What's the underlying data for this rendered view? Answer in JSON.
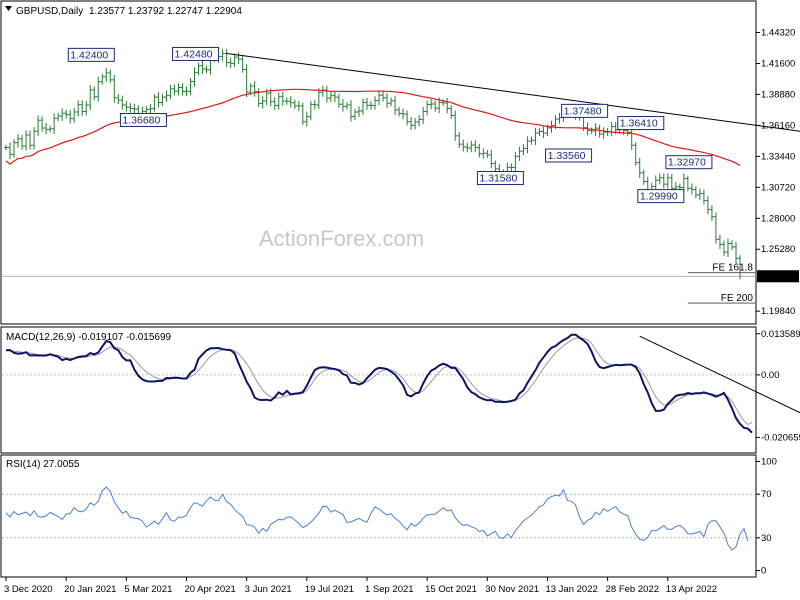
{
  "chart_data": [
    {
      "type": "candlestick",
      "header": {
        "symbol": "GBPUSD,Daily",
        "ohlc": "1.23577 1.23792 1.22747 1.22904"
      },
      "watermark": "ActionForex.com",
      "y_ticks": [
        "1.44320",
        "1.41600",
        "1.38880",
        "1.36160",
        "1.33440",
        "1.30720",
        "1.28000",
        "1.25280",
        "1.19840"
      ],
      "y_tick_values": [
        1.4432,
        1.416,
        1.3888,
        1.3616,
        1.3344,
        1.3072,
        1.28,
        1.2528,
        1.1984
      ],
      "ylim": [
        1.188,
        1.47
      ],
      "current_price": "1.22904",
      "annotations": [
        {
          "text": "1.42400",
          "value": 1.424,
          "index": 25
        },
        {
          "text": "1.42480",
          "value": 1.4248,
          "index": 51
        },
        {
          "text": "1.36680",
          "value": 1.3668,
          "index": 38
        },
        {
          "text": "1.37480",
          "value": 1.3748,
          "index": 148
        },
        {
          "text": "1.36410",
          "value": 1.3641,
          "index": 162
        },
        {
          "text": "1.33560",
          "value": 1.3356,
          "index": 144
        },
        {
          "text": "1.31580",
          "value": 1.3158,
          "index": 127
        },
        {
          "text": "1.32970",
          "value": 1.3297,
          "index": 174
        },
        {
          "text": "1.29990",
          "value": 1.2999,
          "index": 167
        }
      ],
      "fib_levels": [
        {
          "label": "FE 161.8",
          "value": 1.2322
        },
        {
          "label": "FE 200",
          "value": 1.2055
        }
      ],
      "trendline": {
        "from": {
          "index": 55,
          "value": 1.4248
        },
        "to": {
          "index": 200,
          "value": 1.3555
        }
      },
      "ma_color": "#e01a1a",
      "candle_color": "#2a7a36",
      "series": [
        {
          "name": "close",
          "values": [
            1.3421,
            1.3362,
            1.3464,
            1.3498,
            1.3435,
            1.3532,
            1.3441,
            1.3565,
            1.3662,
            1.3593,
            1.3581,
            1.3586,
            1.3678,
            1.3698,
            1.3723,
            1.371,
            1.3675,
            1.3734,
            1.3798,
            1.3738,
            1.3795,
            1.3928,
            1.3868,
            1.3999,
            1.4043,
            1.4077,
            1.4016,
            1.3858,
            1.3837,
            1.3795,
            1.3775,
            1.3764,
            1.376,
            1.3717,
            1.3739,
            1.3757,
            1.3763,
            1.3865,
            1.3817,
            1.3865,
            1.3881,
            1.3937,
            1.3918,
            1.3949,
            1.3915,
            1.3916,
            1.4001,
            1.4082,
            1.414,
            1.4112,
            1.4104,
            1.4215,
            1.4205,
            1.422,
            1.4248,
            1.4168,
            1.4161,
            1.4215,
            1.4198,
            1.4108,
            1.3909,
            1.3961,
            1.3913,
            1.3808,
            1.383,
            1.39,
            1.3825,
            1.3791,
            1.3868,
            1.383,
            1.3829,
            1.3815,
            1.3788,
            1.3786,
            1.3648,
            1.3693,
            1.38,
            1.3796,
            1.3906,
            1.3926,
            1.3856,
            1.3877,
            1.3864,
            1.3802,
            1.3781,
            1.3795,
            1.3693,
            1.3734,
            1.3743,
            1.3818,
            1.3793,
            1.3791,
            1.3835,
            1.3881,
            1.3858,
            1.3811,
            1.3832,
            1.3752,
            1.3721,
            1.3715,
            1.3648,
            1.3617,
            1.3646,
            1.3668,
            1.3738,
            1.3799,
            1.3804,
            1.3767,
            1.3818,
            1.3813,
            1.3765,
            1.3702,
            1.3524,
            1.3451,
            1.3426,
            1.3417,
            1.3444,
            1.3421,
            1.3367,
            1.3372,
            1.3357,
            1.3282,
            1.3234,
            1.32,
            1.3184,
            1.3247,
            1.3246,
            1.3344,
            1.339,
            1.3414,
            1.3478,
            1.3486,
            1.3549,
            1.3562,
            1.3549,
            1.3594,
            1.3614,
            1.3672,
            1.3684,
            1.3719,
            1.3726,
            1.3729,
            1.37,
            1.3709,
            1.3596,
            1.3572,
            1.3567,
            1.3592,
            1.3539,
            1.3557,
            1.356,
            1.3606,
            1.3576,
            1.3629,
            1.3572,
            1.3556,
            1.3442,
            1.3288,
            1.3199,
            1.3122,
            1.3037,
            1.3079,
            1.3135,
            1.3156,
            1.31,
            1.3155,
            1.3063,
            1.3076,
            1.307,
            1.3149,
            1.3063,
            1.3052,
            1.3005,
            1.3018,
            1.2955,
            1.2876,
            1.2814,
            1.2615,
            1.2571,
            1.2503,
            1.2578,
            1.2548,
            1.2449,
            1.229
          ]
        }
      ]
    },
    {
      "type": "line",
      "label": "MACD(12,26,9) -0.019107 -0.015699",
      "y_ticks": [
        "0.013589",
        "0.00",
        "-0.020659"
      ],
      "y_tick_values": [
        0.013589,
        0.0,
        -0.020659
      ],
      "ylim": [
        -0.0255,
        0.0155
      ],
      "macd_color": "#0d1466",
      "signal_color": "#9a9a9a",
      "trendline": {
        "from": {
          "index": 158,
          "value": 0.0128
        },
        "to": {
          "index": 200,
          "value": -0.0138
        }
      },
      "series": [
        {
          "name": "MACD",
          "values": [
            0.0082,
            0.0082,
            0.0073,
            0.007,
            0.0071,
            0.0075,
            0.0064,
            0.0065,
            0.0064,
            0.0064,
            0.0064,
            0.0068,
            0.0064,
            0.006,
            0.0049,
            0.0053,
            0.0049,
            0.0054,
            0.0059,
            0.0061,
            0.0062,
            0.0072,
            0.0068,
            0.0074,
            0.0094,
            0.0112,
            0.0108,
            0.0088,
            0.0082,
            0.0059,
            0.0048,
            0.0048,
            0.0018,
            -0.0003,
            -0.0015,
            -0.0021,
            -0.0022,
            -0.0022,
            -0.002,
            -0.002,
            -0.001,
            -0.0011,
            -0.0009,
            -0.001,
            -0.0012,
            -0.0012,
            0.0007,
            0.0017,
            0.0053,
            0.0068,
            0.0081,
            0.0088,
            0.0088,
            0.0089,
            0.0085,
            0.0083,
            0.0082,
            0.0071,
            0.0038,
            0.0009,
            -0.0023,
            -0.0045,
            -0.0075,
            -0.0082,
            -0.0083,
            -0.0082,
            -0.0085,
            -0.0074,
            -0.0058,
            -0.0066,
            -0.0053,
            -0.0065,
            -0.0062,
            -0.0061,
            -0.0057,
            -0.0036,
            -0.0009,
            0.0016,
            0.0023,
            0.0025,
            0.0024,
            0.0021,
            0.0019,
            0.0015,
            0.0003,
            -0.0002,
            -0.0026,
            -0.0027,
            -0.0032,
            -0.0027,
            -0.0011,
            0.0003,
            0.0017,
            0.0023,
            0.0022,
            0.0019,
            0.0011,
            0.0001,
            -0.0016,
            -0.0034,
            -0.0066,
            -0.0071,
            -0.0062,
            -0.0058,
            -0.0029,
            -0.0004,
            0.0014,
            0.0021,
            0.0031,
            0.0037,
            0.0032,
            0.0023,
            0.0023,
            0.0005,
            -0.0014,
            -0.0041,
            -0.0057,
            -0.0064,
            -0.0074,
            -0.008,
            -0.0084,
            -0.0083,
            -0.0089,
            -0.0089,
            -0.009,
            -0.0089,
            -0.0086,
            -0.0082,
            -0.0062,
            -0.0051,
            -0.0027,
            -0.0006,
            0.0015,
            0.0041,
            0.0058,
            0.0076,
            0.009,
            0.0095,
            0.0106,
            0.0115,
            0.0122,
            0.0133,
            0.0133,
            0.0123,
            0.0114,
            0.0102,
            0.0077,
            0.0045,
            0.0026,
            0.0022,
            0.0026,
            0.003,
            0.0033,
            0.0032,
            0.0033,
            0.0034,
            0.0034,
            0.0026,
            0.0005,
            -0.003,
            -0.0058,
            -0.0094,
            -0.0119,
            -0.0119,
            -0.0115,
            -0.0096,
            -0.0083,
            -0.007,
            -0.0066,
            -0.0065,
            -0.006,
            -0.0063,
            -0.0061,
            -0.0061,
            -0.0058,
            -0.0062,
            -0.0066,
            -0.0072,
            -0.0067,
            -0.006,
            -0.0082,
            -0.0111,
            -0.0143,
            -0.0162,
            -0.0175,
            -0.0178,
            -0.0191
          ]
        },
        {
          "name": "Signal",
          "values": [
            0.0079,
            0.008,
            0.0078,
            0.0077,
            0.0075,
            0.0073,
            0.0072,
            0.007,
            0.0067,
            0.0066,
            0.0066,
            0.0066,
            0.0066,
            0.0065,
            0.006,
            0.0057,
            0.0055,
            0.0054,
            0.0056,
            0.0058,
            0.0059,
            0.0063,
            0.0064,
            0.0067,
            0.0075,
            0.0085,
            0.0092,
            0.0093,
            0.009,
            0.0083,
            0.0073,
            0.0065,
            0.0052,
            0.0036,
            0.0021,
            0.001,
            0.0001,
            -0.0007,
            -0.0012,
            -0.0016,
            -0.0015,
            -0.0013,
            -0.0011,
            -0.001,
            -0.0011,
            -0.0011,
            -0.0006,
            0.0002,
            0.0015,
            0.003,
            0.0047,
            0.0061,
            0.0071,
            0.0079,
            0.0083,
            0.0084,
            0.0083,
            0.008,
            0.0069,
            0.0055,
            0.0037,
            0.0016,
            -0.0009,
            -0.0031,
            -0.005,
            -0.0064,
            -0.0072,
            -0.0077,
            -0.0076,
            -0.0073,
            -0.0069,
            -0.0066,
            -0.0064,
            -0.0064,
            -0.0061,
            -0.0051,
            -0.0035,
            -0.0014,
            0.0002,
            0.0012,
            0.0017,
            0.0019,
            0.002,
            0.0018,
            0.0014,
            0.0009,
            -0.0003,
            -0.0013,
            -0.0022,
            -0.0026,
            -0.0023,
            -0.0015,
            -0.0003,
            0.0008,
            0.0015,
            0.0018,
            0.0016,
            0.0011,
            0.0001,
            -0.0012,
            -0.0031,
            -0.0048,
            -0.0057,
            -0.006,
            -0.0053,
            -0.0038,
            -0.0022,
            -0.0006,
            0.0009,
            0.0022,
            0.0028,
            0.0028,
            0.0026,
            0.0019,
            0.0007,
            -0.0011,
            -0.0029,
            -0.0044,
            -0.0057,
            -0.0066,
            -0.0073,
            -0.0077,
            -0.0081,
            -0.0084,
            -0.0087,
            -0.0088,
            -0.0087,
            -0.0085,
            -0.0077,
            -0.0068,
            -0.0054,
            -0.0037,
            -0.0019,
            0.0001,
            0.0022,
            0.004,
            0.0057,
            0.0073,
            0.0085,
            0.0096,
            0.0106,
            0.0115,
            0.0121,
            0.0122,
            0.0121,
            0.0116,
            0.0104,
            0.0084,
            0.0064,
            0.0047,
            0.0037,
            0.0033,
            0.0033,
            0.0033,
            0.0033,
            0.0033,
            0.0034,
            0.0031,
            0.0021,
            0.0003,
            -0.002,
            -0.0048,
            -0.0072,
            -0.0089,
            -0.01,
            -0.01,
            -0.0095,
            -0.0086,
            -0.0078,
            -0.0072,
            -0.0066,
            -0.0065,
            -0.0063,
            -0.0062,
            -0.0061,
            -0.0061,
            -0.0063,
            -0.0067,
            -0.0067,
            -0.0065,
            -0.0072,
            -0.0087,
            -0.011,
            -0.0133,
            -0.0152,
            -0.0164,
            -0.0157
          ]
        }
      ]
    },
    {
      "type": "line",
      "label": "RSI(14) 27.0055",
      "y_ticks": [
        "100",
        "70",
        "30",
        "0"
      ],
      "y_tick_values": [
        100,
        70,
        30,
        0
      ],
      "ylim": [
        -5,
        105
      ],
      "levels": [
        70,
        30
      ],
      "line_color": "#4a7fd4",
      "series": [
        {
          "name": "RSI",
          "values": [
            52.9,
            49.0,
            54.1,
            51.1,
            52.2,
            53.7,
            50.1,
            54.8,
            49.5,
            49.0,
            50.0,
            53.3,
            51.4,
            49.5,
            46.7,
            51.7,
            52.3,
            57.8,
            54.5,
            53.8,
            56.4,
            62.1,
            59.8,
            63.6,
            73.2,
            76.5,
            72.5,
            63.0,
            57.6,
            52.6,
            54.3,
            48.7,
            48.1,
            47.6,
            45.2,
            39.8,
            42.3,
            45.3,
            42.4,
            47.5,
            52.9,
            46.5,
            45.2,
            49.1,
            48.6,
            50.6,
            58.0,
            62.2,
            61.1,
            59.0,
            63.9,
            67.4,
            64.4,
            64.3,
            69.8,
            63.0,
            60.8,
            56.1,
            52.5,
            49.7,
            41.9,
            41.7,
            39.7,
            34.1,
            38.7,
            36.0,
            42.3,
            44.6,
            47.0,
            46.3,
            48.9,
            49.1,
            46.4,
            43.2,
            39.4,
            41.3,
            44.3,
            48.2,
            52.6,
            59.0,
            58.5,
            53.6,
            55.3,
            53.3,
            51.5,
            44.1,
            44.5,
            46.3,
            47.8,
            45.7,
            44.4,
            52.5,
            58.3,
            56.5,
            53.5,
            51.0,
            52.0,
            47.9,
            45.2,
            40.9,
            37.4,
            43.1,
            40.7,
            43.4,
            47.9,
            50.9,
            51.5,
            51.7,
            54.6,
            57.6,
            54.6,
            55.8,
            48.6,
            44.1,
            41.5,
            42.0,
            40.1,
            38.8,
            35.8,
            36.9,
            31.7,
            33.9,
            36.0,
            30.2,
            29.5,
            33.8,
            30.1,
            36.6,
            40.9,
            45.5,
            48.2,
            50.6,
            54.4,
            58.5,
            60.2,
            65.8,
            67.7,
            69.2,
            68.4,
            74.0,
            64.1,
            63.5,
            60.1,
            48.8,
            42.0,
            46.1,
            48.0,
            53.5,
            51.3,
            56.7,
            54.3,
            56.9,
            58.6,
            53.7,
            51.7,
            50.4,
            39.8,
            33.3,
            28.6,
            27.6,
            30.4,
            36.7,
            36.4,
            38.6,
            41.3,
            37.9,
            37.9,
            40.3,
            41.5,
            38.6,
            33.7,
            33.6,
            34.5,
            35.8,
            31.0,
            42.4,
            45.6,
            45.6,
            40.1,
            34.3,
            23.6,
            18.8,
            21.9,
            33.5,
            38.4,
            27.0
          ]
        }
      ]
    }
  ],
  "x_axis": {
    "labels": [
      "3 Dec 2020",
      "20 Jan 2021",
      "5 Mar 2021",
      "20 Apr 2021",
      "3 Jun 2021",
      "19 Jul 2021",
      "1 Sep 2021",
      "15 Oct 2021",
      "30 Nov 2021",
      "13 Jan 2022",
      "28 Feb 2022",
      "13 Apr 2022"
    ],
    "label_indices": [
      0,
      15,
      30,
      45,
      60,
      75,
      90,
      105,
      120,
      135,
      150,
      165
    ]
  }
}
